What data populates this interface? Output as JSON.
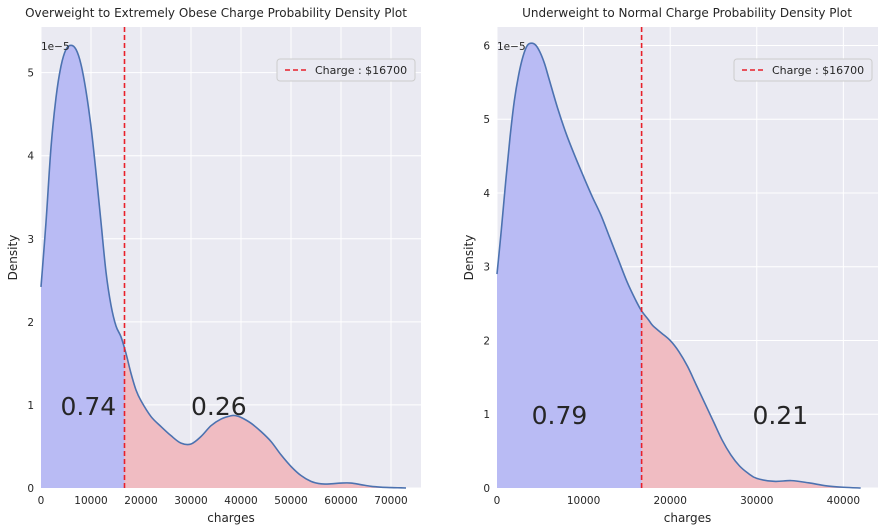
{
  "chart_data": [
    {
      "type": "area",
      "title": "Overweight to Extremely Obese Charge Probability Density Plot",
      "xlabel": "charges",
      "ylabel": "Density",
      "y_scale_label": "1e−5",
      "xlim": [
        0,
        76000
      ],
      "ylim": [
        0,
        5.55
      ],
      "xticks": [
        0,
        10000,
        20000,
        30000,
        40000,
        50000,
        60000,
        70000
      ],
      "xtick_labels": [
        "0",
        "10000",
        "20000",
        "30000",
        "40000",
        "50000",
        "60000",
        "70000"
      ],
      "yticks": [
        0,
        1,
        2,
        3,
        4,
        5
      ],
      "ytick_labels": [
        "0",
        "1",
        "2",
        "3",
        "4",
        "5"
      ],
      "grid": true,
      "threshold": 16700,
      "legend": {
        "label": "Charge : $16700",
        "position": "top-right"
      },
      "left_area_label": "0.74",
      "right_area_label": "0.26",
      "left_area_color": "#b9bbf4",
      "right_area_color": "#f0bcc2",
      "curve_color": "#4c72b0",
      "threshold_color": "#e8202a",
      "x": [
        0,
        1000,
        2000,
        3000,
        4000,
        5000,
        6000,
        7000,
        8000,
        9000,
        10000,
        11000,
        12000,
        13000,
        14000,
        15000,
        16000,
        17000,
        18000,
        19000,
        20000,
        22000,
        24000,
        26000,
        28000,
        30000,
        32000,
        34000,
        36000,
        38000,
        39000,
        40000,
        42000,
        44000,
        46000,
        48000,
        50000,
        52000,
        54000,
        56000,
        58000,
        60000,
        62000,
        64000,
        66000,
        68000,
        70000,
        72000,
        73000
      ],
      "y": [
        2.42,
        3.2,
        4.1,
        4.7,
        5.08,
        5.28,
        5.33,
        5.28,
        5.1,
        4.78,
        4.35,
        3.8,
        3.2,
        2.6,
        2.2,
        1.95,
        1.82,
        1.62,
        1.38,
        1.18,
        1.05,
        0.86,
        0.74,
        0.63,
        0.54,
        0.53,
        0.62,
        0.75,
        0.83,
        0.87,
        0.87,
        0.85,
        0.78,
        0.68,
        0.56,
        0.4,
        0.26,
        0.15,
        0.08,
        0.05,
        0.05,
        0.06,
        0.06,
        0.04,
        0.02,
        0.01,
        0.005,
        0.002,
        0.0
      ]
    },
    {
      "type": "area",
      "title": "Underweight to Normal Charge Probability Density Plot",
      "xlabel": "charges",
      "ylabel": "Density",
      "y_scale_label": "1e−5",
      "xlim": [
        0,
        44000
      ],
      "ylim": [
        0,
        6.25
      ],
      "xticks": [
        0,
        10000,
        20000,
        30000,
        40000
      ],
      "xtick_labels": [
        "0",
        "10000",
        "20000",
        "30000",
        "40000"
      ],
      "yticks": [
        0,
        1,
        2,
        3,
        4,
        5,
        6
      ],
      "ytick_labels": [
        "0",
        "1",
        "2",
        "3",
        "4",
        "5",
        "6"
      ],
      "grid": true,
      "threshold": 16700,
      "legend": {
        "label": "Charge : $16700",
        "position": "top-right"
      },
      "left_area_label": "0.79",
      "right_area_label": "0.21",
      "left_area_color": "#b9bbf4",
      "right_area_color": "#f0bcc2",
      "curve_color": "#4c72b0",
      "threshold_color": "#e8202a",
      "x": [
        0,
        500,
        1000,
        1500,
        2000,
        2500,
        3000,
        3500,
        4000,
        4500,
        5000,
        5500,
        6000,
        7000,
        8000,
        9000,
        10000,
        11000,
        12000,
        13000,
        14000,
        15000,
        16000,
        16700,
        17500,
        18000,
        19000,
        20000,
        21000,
        22000,
        23000,
        24000,
        25000,
        26000,
        27000,
        28000,
        29000,
        30000,
        32000,
        34000,
        36000,
        38000,
        40000,
        42000
      ],
      "y": [
        2.9,
        3.5,
        4.15,
        4.75,
        5.25,
        5.6,
        5.85,
        6.0,
        6.03,
        6.0,
        5.9,
        5.75,
        5.55,
        5.15,
        4.8,
        4.5,
        4.22,
        3.95,
        3.7,
        3.4,
        3.1,
        2.8,
        2.55,
        2.4,
        2.28,
        2.2,
        2.1,
        2.0,
        1.85,
        1.65,
        1.4,
        1.15,
        0.9,
        0.65,
        0.45,
        0.3,
        0.2,
        0.13,
        0.09,
        0.1,
        0.07,
        0.03,
        0.01,
        0.0
      ]
    }
  ]
}
